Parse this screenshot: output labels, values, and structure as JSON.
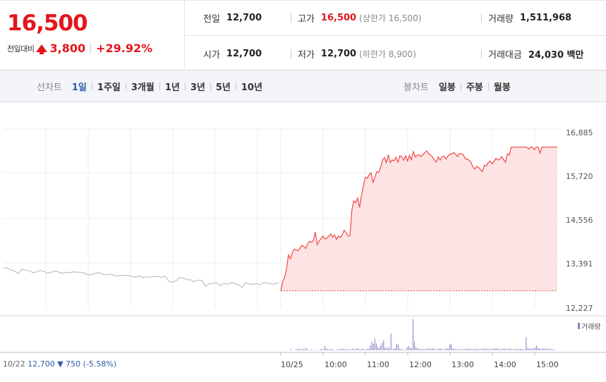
{
  "summary": {
    "price": "16,500",
    "change_label": "전일대비",
    "change_amount": "3,800",
    "change_pct": "+29.92%",
    "prev_close": {
      "label": "전일",
      "value": "12,700"
    },
    "high": {
      "label": "고가",
      "value": "16,500",
      "sub": "(상한가 16,500)"
    },
    "volume": {
      "label": "거래량",
      "value": "1,511,968"
    },
    "open": {
      "label": "시가",
      "value": "12,700"
    },
    "low": {
      "label": "저가",
      "value": "12,700",
      "sub": "(하한가 8,900)"
    },
    "trade_value": {
      "label": "거래대금",
      "value": "24,030 백만"
    },
    "up_color": "#e3151b"
  },
  "toolbar": {
    "line_title": "선차트",
    "line_items": [
      "1일",
      "1주일",
      "3개월",
      "1년",
      "3년",
      "5년",
      "10년"
    ],
    "line_active": "1일",
    "candle_title": "봉차트",
    "candle_items": [
      "일봉",
      "주봉",
      "월봉"
    ]
  },
  "footer": {
    "prev_date": "10/22",
    "prev_price": "12,700",
    "prev_change": "▼ 750",
    "prev_pct": "(-5.58%)"
  },
  "chart_data": {
    "type": "line",
    "y_ticks": [
      "16,885",
      "15,720",
      "14,556",
      "13,391",
      "12,227"
    ],
    "ylim": [
      12227,
      16885
    ],
    "x_ticks": [
      "10/25",
      "10:00",
      "11:00",
      "12:00",
      "13:00",
      "14:00",
      "15:00"
    ],
    "volume_label": "거래량",
    "colors": {
      "today": "#f04848",
      "today_fill": "#fde3e3",
      "prev": "#b4b4b4",
      "volume": "#8c7ec3",
      "base": "#e0555a"
    },
    "base_price": 12700,
    "prev_day": {
      "date": "10/22",
      "values": [
        13310,
        13300,
        13250,
        13230,
        13150,
        13270,
        13250,
        13230,
        13180,
        13200,
        13240,
        13210,
        13170,
        13190,
        13220,
        13200,
        13160,
        13190,
        13180,
        13200,
        13190,
        13190,
        13170,
        13120,
        13130,
        13160,
        13180,
        13140,
        13120,
        13150,
        13110,
        13090,
        13110,
        13110,
        13100,
        13080,
        13060,
        13090,
        13050,
        13070,
        13060,
        13080,
        13080,
        13050,
        13090,
        12960,
        12930,
        12960,
        13050,
        13040,
        12990,
        12990,
        12940,
        12980,
        12980,
        12820,
        12880,
        12890,
        12920,
        12830,
        12900,
        12870,
        12910,
        12900,
        12860,
        12790,
        12910,
        12880,
        12870,
        12890,
        12860,
        12920,
        12900,
        12880,
        12880,
        12920
      ]
    },
    "today": {
      "date": "10/25",
      "values": [
        12700,
        12950,
        13050,
        13280,
        13650,
        13550,
        13700,
        13800,
        13780,
        13760,
        13830,
        13900,
        13870,
        13820,
        13950,
        14010,
        13980,
        14040,
        14250,
        13920,
        14020,
        14080,
        14150,
        14070,
        14090,
        14150,
        14200,
        14120,
        14180,
        14060,
        14150,
        14110,
        14180,
        14300,
        14240,
        14150,
        14150,
        14820,
        15080,
        15030,
        15150,
        14900,
        15210,
        15470,
        15700,
        15680,
        15760,
        15820,
        15570,
        15700,
        15850,
        15830,
        15960,
        16160,
        16220,
        16090,
        16300,
        16090,
        16160,
        16140,
        16230,
        16100,
        16270,
        16240,
        16150,
        16270,
        16130,
        16280,
        16160,
        16380,
        16240,
        16280,
        16300,
        16250,
        16300,
        16350,
        16400,
        16330,
        16290,
        16240,
        16160,
        16100,
        16240,
        16150,
        16250,
        16260,
        16180,
        16260,
        16310,
        16320,
        16350,
        16320,
        16250,
        16330,
        16330,
        16300,
        16200,
        16180,
        16150,
        16100,
        15980,
        15920,
        15990,
        15960,
        15900,
        15850,
        16020,
        16000,
        16090,
        16130,
        16060,
        16120,
        16200,
        16160,
        16180,
        16250,
        16170,
        16100,
        16320,
        16290,
        16500,
        16500,
        16500,
        16500,
        16500,
        16500,
        16500,
        16500,
        16500,
        16450,
        16500,
        16500,
        16430,
        16500,
        16500,
        16340,
        16500,
        16500,
        16500,
        16500,
        16500,
        16500,
        16500,
        16500,
        16500
      ]
    },
    "volume_today": [
      0.04,
      0.0,
      0.0,
      0.02,
      0.03,
      0.05,
      0.04,
      0.03,
      0.06,
      0.03,
      0.08,
      0.05,
      0.0,
      0.02,
      0.03,
      0.0,
      0.02,
      0.0,
      0.02,
      0.0,
      0.03,
      0.05,
      0.02,
      0.14,
      0.06,
      0.04,
      0.03,
      0.05,
      0.02,
      0.03,
      0.0,
      0.02,
      0.02,
      0.04,
      0.04,
      0.05,
      0.04,
      0.04,
      0.02,
      0.04,
      0.03,
      0.02,
      0.06,
      0.04,
      0.03,
      0.06,
      0.04,
      0.03,
      0.04,
      0.05,
      0.02,
      0.03,
      0.06,
      0.05,
      0.16,
      0.28,
      0.21,
      0.38,
      0.22,
      0.11,
      0.07,
      0.16,
      0.24,
      0.33,
      0.09,
      0.05,
      0.11,
      0.06,
      0.54,
      0.03,
      0.05,
      0.07,
      0.21,
      0.18,
      0.06,
      0.04,
      0.03,
      0.0,
      0.03,
      0.09,
      0.14,
      0.07,
      0.08,
      1.0,
      0.28,
      0.11,
      0.07,
      0.05,
      0.04,
      0.03,
      0.04,
      0.03,
      0.05,
      0.06,
      0.05,
      0.04,
      0.07,
      0.06,
      0.04,
      0.03,
      0.04,
      0.06,
      0.05,
      0.03,
      0.02,
      0.05,
      0.08,
      0.05,
      0.18,
      0.21,
      0.06,
      0.05,
      0.04,
      0.03,
      0.02,
      0.05,
      0.03,
      0.04,
      0.03,
      0.05,
      0.04,
      0.05,
      0.06,
      0.03,
      0.04,
      0.05,
      0.04,
      0.04,
      0.03,
      0.03,
      0.05,
      0.04,
      0.06,
      0.04,
      0.05,
      0.04,
      0.03,
      0.04,
      0.06,
      0.05,
      0.07,
      0.05,
      0.03,
      0.04,
      0.04,
      0.06,
      0.05,
      0.03,
      0.06,
      0.04,
      0.05,
      0.03,
      0.03,
      0.05,
      0.04,
      0.04,
      0.05,
      0.04,
      0.03,
      0.03,
      0.42,
      0.08,
      0.06,
      0.05,
      0.05,
      0.07,
      0.09,
      0.15,
      0.08,
      0.06,
      0.05,
      0.05,
      0.06,
      0.05,
      0.06,
      0.04,
      0.05,
      0.04,
      0.03,
      0.03
    ]
  }
}
